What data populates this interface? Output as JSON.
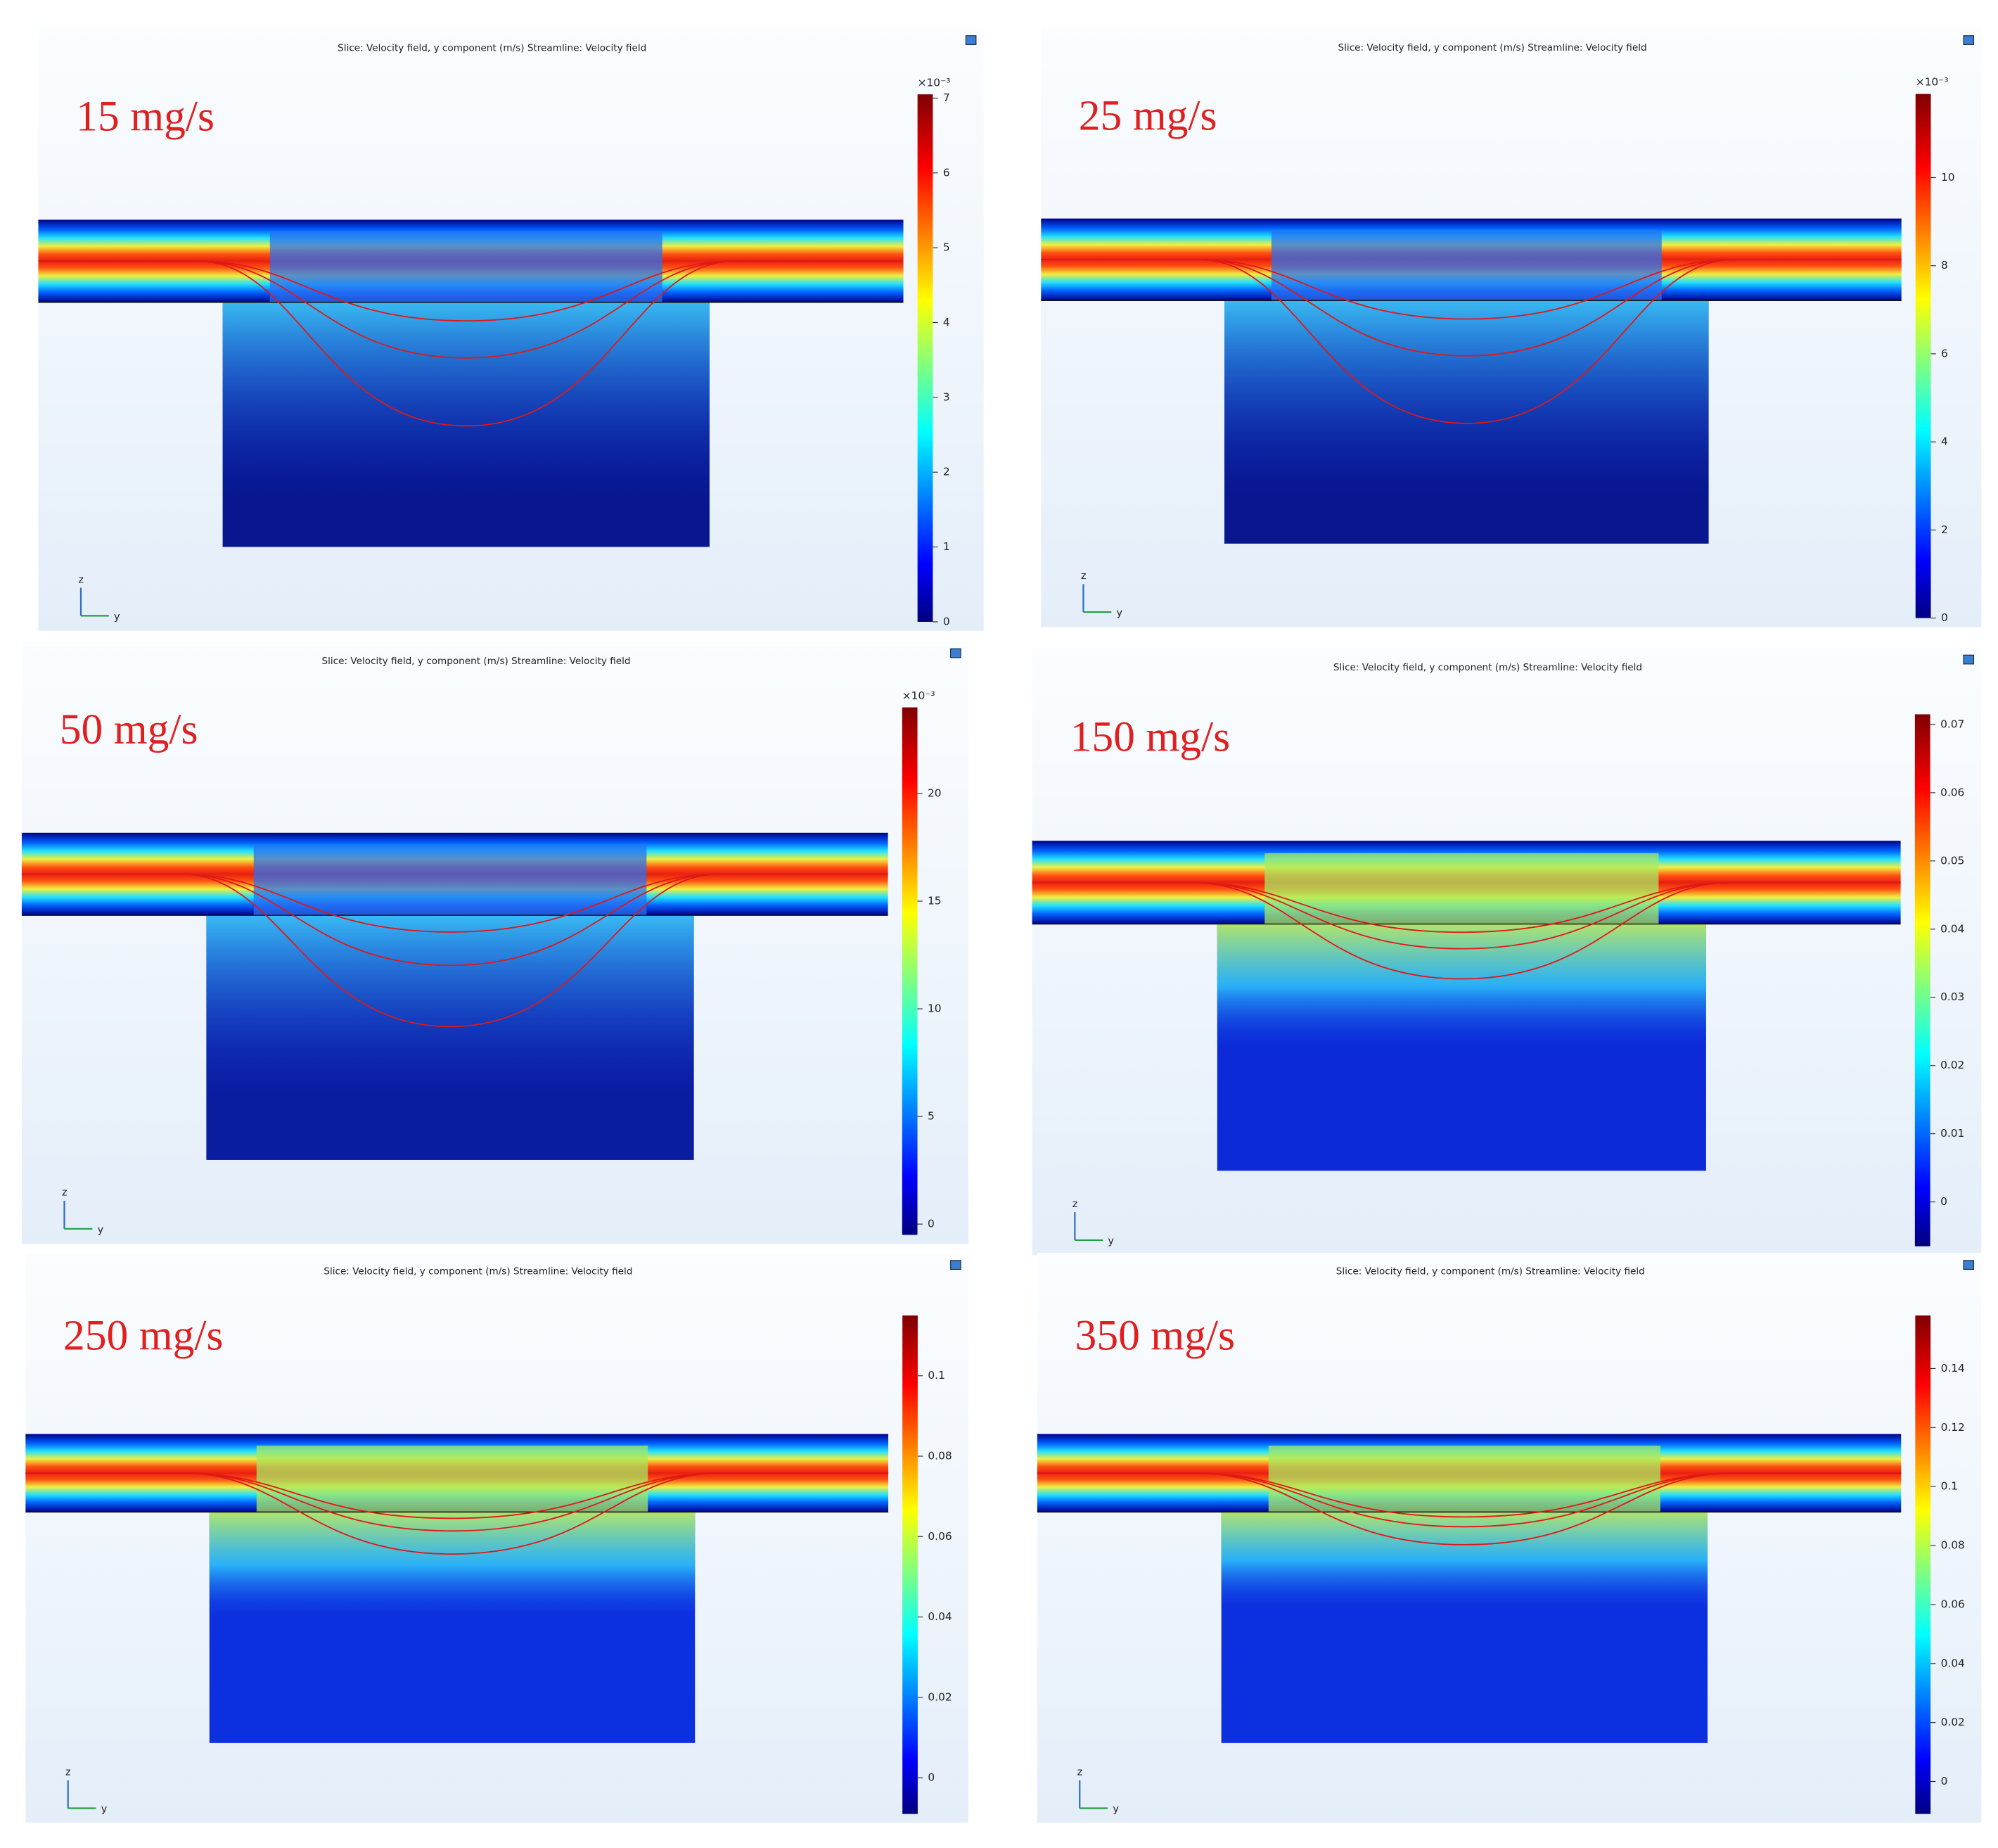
{
  "panels": [
    {
      "plot_title": "Slice: Velocity field, y component (m/s)  Streamline: Velocity field",
      "flow_label": "15 mg/s",
      "colorbar_exponent": "×10⁻³",
      "clim": [
        0,
        7.05
      ],
      "colorbar_ticks": [
        0,
        1,
        2,
        3,
        4,
        5,
        6,
        7
      ],
      "axis_labels": {
        "vertical": "z",
        "horizontal": "y"
      }
    },
    {
      "plot_title": "Slice: Velocity field, y component (m/s)  Streamline: Velocity field",
      "flow_label": "25 mg/s",
      "colorbar_exponent": "×10⁻³",
      "clim": [
        0,
        11.9
      ],
      "colorbar_ticks": [
        0,
        2,
        4,
        6,
        8,
        10
      ],
      "axis_labels": {
        "vertical": "z",
        "horizontal": "y"
      }
    },
    {
      "plot_title": "Slice: Velocity field, y component (m/s)  Streamline: Velocity field",
      "flow_label": "50 mg/s",
      "colorbar_exponent": "×10⁻³",
      "clim": [
        -0.5,
        24
      ],
      "colorbar_ticks": [
        0,
        5,
        10,
        15,
        20
      ],
      "axis_labels": {
        "vertical": "z",
        "horizontal": "y"
      }
    },
    {
      "plot_title": "Slice: Velocity field, y component (m/s)  Streamline: Velocity field",
      "flow_label": "150 mg/s",
      "clim": [
        -0.0065,
        0.0715
      ],
      "colorbar_ticks": [
        0,
        0.01,
        0.02,
        0.03,
        0.04,
        0.05,
        0.06,
        0.07
      ],
      "axis_labels": {
        "vertical": "z",
        "horizontal": "y"
      }
    },
    {
      "plot_title": "Slice: Velocity field, y component (m/s)  Streamline: Velocity field",
      "flow_label": "250 mg/s",
      "clim": [
        -0.009,
        0.115
      ],
      "colorbar_ticks": [
        0,
        0.02,
        0.04,
        0.06,
        0.08,
        0.1
      ],
      "axis_labels": {
        "vertical": "z",
        "horizontal": "y"
      }
    },
    {
      "plot_title": "Slice: Velocity field, y component (m/s)  Streamline: Velocity field",
      "flow_label": "350 mg/s",
      "clim": [
        -0.011,
        0.158
      ],
      "colorbar_ticks": [
        0,
        0.02,
        0.04,
        0.06,
        0.08,
        0.1,
        0.12,
        0.14
      ],
      "axis_labels": {
        "vertical": "z",
        "horizontal": "y"
      }
    }
  ]
}
